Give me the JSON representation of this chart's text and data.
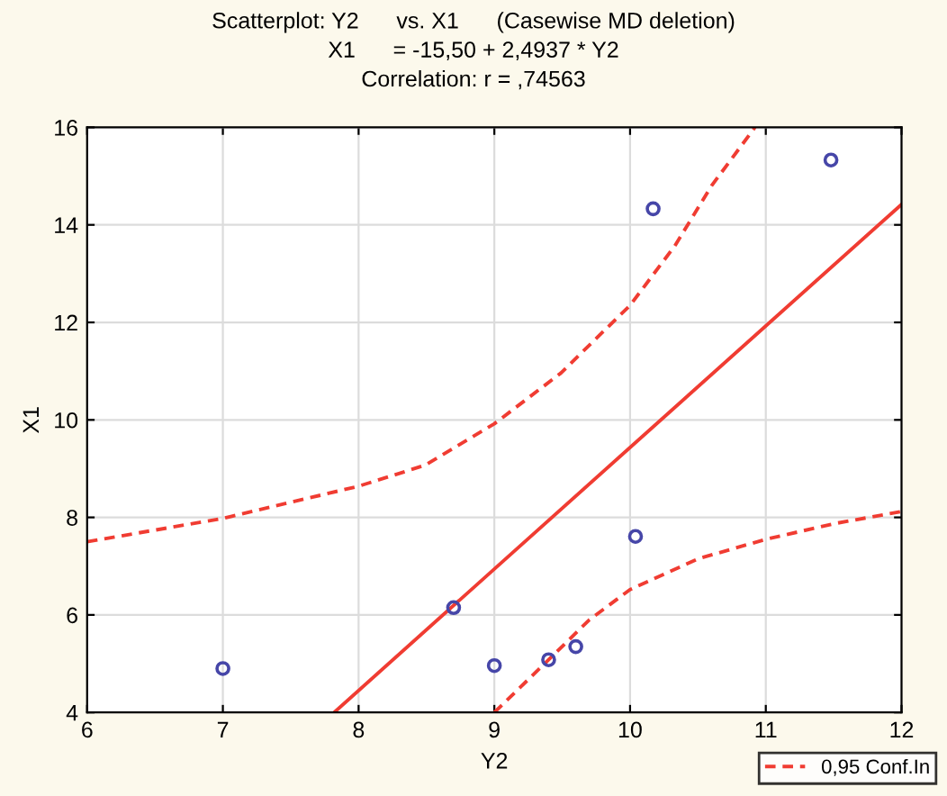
{
  "chart_data": {
    "type": "scatter",
    "title": "Scatterplot: Y2      vs. X1      (Casewise MD deletion)\nX1      = -15,50 + 2,4937 * Y2\nCorrelation: r = ,74563",
    "xlabel": "Y2",
    "ylabel": "X1",
    "xlim": [
      6,
      12
    ],
    "ylim": [
      4,
      16
    ],
    "xticks": [
      6,
      7,
      8,
      9,
      10,
      11,
      12
    ],
    "yticks": [
      4,
      6,
      8,
      10,
      12,
      14,
      16
    ],
    "grid": true,
    "legend": "bottom right",
    "series": [
      {
        "color": "#4646a8",
        "marker": "circle",
        "x": [
          7.0,
          8.7,
          9.0,
          9.4,
          9.6,
          10.04,
          10.17,
          11.48
        ],
        "values": [
          4.9,
          6.15,
          4.96,
          5.08,
          5.35,
          7.61,
          14.33,
          15.33
        ]
      },
      {
        "type": "line",
        "color": "#f03c32",
        "line_style": "solid",
        "marker": "none",
        "x": [
          7.82,
          12
        ],
        "values": [
          4.0,
          14.42
        ]
      },
      {
        "type": "line",
        "name": "0,95 Conf.In",
        "color": "#f03c32",
        "line_style": "dashed",
        "marker": "none",
        "x": [
          6,
          7,
          8,
          8.49,
          9,
          9.49,
          10,
          10.33,
          10.6,
          10.92
        ],
        "values": [
          7.5,
          7.98,
          8.64,
          9.07,
          9.92,
          10.96,
          12.35,
          13.57,
          14.8,
          16.0
        ]
      },
      {
        "type": "line",
        "color": "#f03c32",
        "line_style": "dashed",
        "marker": "none",
        "x": [
          9.0,
          9.4,
          9.7,
          10.0,
          10.5,
          11.0,
          11.5,
          12.0
        ],
        "values": [
          4.0,
          5.08,
          5.9,
          6.52,
          7.15,
          7.55,
          7.87,
          8.12
        ]
      }
    ]
  }
}
